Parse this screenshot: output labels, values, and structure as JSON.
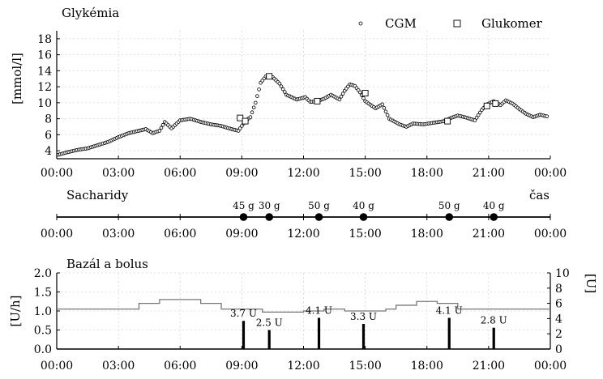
{
  "chart_data": [
    {
      "id": "glycemia",
      "type": "scatter",
      "title": "Glykémia",
      "ylabel": "[mmol/l]",
      "xlim": [
        "00:00",
        "24:00"
      ],
      "ylim": [
        3,
        19
      ],
      "grid": true,
      "legend_placement": "top-right",
      "x_ticks": [
        "00:00",
        "03:00",
        "06:00",
        "09:00",
        "12:00",
        "15:00",
        "18:00",
        "21:00",
        "00:00"
      ],
      "y_ticks": [
        4,
        6,
        8,
        10,
        12,
        14,
        16,
        18
      ],
      "series": [
        {
          "name": "CGM",
          "marker": "circle",
          "keypoints": [
            [
              "00:05",
              3.5
            ],
            [
              "00:30",
              3.8
            ],
            [
              "01:00",
              4.1
            ],
            [
              "01:30",
              4.3
            ],
            [
              "02:00",
              4.7
            ],
            [
              "02:30",
              5.1
            ],
            [
              "03:00",
              5.7
            ],
            [
              "03:30",
              6.2
            ],
            [
              "04:00",
              6.5
            ],
            [
              "04:20",
              6.7
            ],
            [
              "04:40",
              6.2
            ],
            [
              "05:00",
              6.5
            ],
            [
              "05:15",
              7.6
            ],
            [
              "05:35",
              6.8
            ],
            [
              "06:00",
              7.8
            ],
            [
              "06:30",
              8.0
            ],
            [
              "07:00",
              7.6
            ],
            [
              "07:30",
              7.3
            ],
            [
              "08:00",
              7.1
            ],
            [
              "08:30",
              6.7
            ],
            [
              "08:50",
              6.5
            ],
            [
              "09:10",
              7.7
            ],
            [
              "09:25",
              8.2
            ],
            [
              "09:40",
              10.0
            ],
            [
              "09:55",
              12.5
            ],
            [
              "10:10",
              13.3
            ],
            [
              "10:30",
              13.2
            ],
            [
              "10:50",
              12.4
            ],
            [
              "11:10",
              11.0
            ],
            [
              "11:40",
              10.4
            ],
            [
              "12:05",
              10.7
            ],
            [
              "12:20",
              10.1
            ],
            [
              "12:40",
              10.2
            ],
            [
              "13:00",
              10.5
            ],
            [
              "13:20",
              11.0
            ],
            [
              "13:45",
              10.4
            ],
            [
              "14:00",
              11.5
            ],
            [
              "14:15",
              12.3
            ],
            [
              "14:30",
              12.1
            ],
            [
              "14:45",
              11.3
            ],
            [
              "15:00",
              10.2
            ],
            [
              "15:30",
              9.3
            ],
            [
              "15:50",
              9.8
            ],
            [
              "16:10",
              8.0
            ],
            [
              "16:40",
              7.3
            ],
            [
              "17:00",
              7.0
            ],
            [
              "17:20",
              7.4
            ],
            [
              "17:50",
              7.3
            ],
            [
              "18:20",
              7.5
            ],
            [
              "18:50",
              7.7
            ],
            [
              "19:10",
              8.1
            ],
            [
              "19:30",
              8.4
            ],
            [
              "19:50",
              8.2
            ],
            [
              "20:20",
              7.8
            ],
            [
              "20:40",
              9.1
            ],
            [
              "20:55",
              9.8
            ],
            [
              "21:15",
              10.2
            ],
            [
              "21:35",
              9.7
            ],
            [
              "21:50",
              10.3
            ],
            [
              "22:10",
              9.9
            ],
            [
              "22:30",
              9.2
            ],
            [
              "22:50",
              8.6
            ],
            [
              "23:10",
              8.2
            ],
            [
              "23:30",
              8.5
            ],
            [
              "23:50",
              8.3
            ]
          ]
        },
        {
          "name": "Glukomer",
          "marker": "square",
          "points": [
            [
              "08:55",
              8.1
            ],
            [
              "09:10",
              7.7
            ],
            [
              "10:20",
              13.3
            ],
            [
              "12:40",
              10.2
            ],
            [
              "15:00",
              11.2
            ],
            [
              "19:00",
              7.7
            ],
            [
              "20:55",
              9.6
            ],
            [
              "21:20",
              9.9
            ]
          ]
        }
      ]
    },
    {
      "id": "carbs",
      "type": "scatter",
      "title": "Sacharidy",
      "xlabel": "čas",
      "xlim": [
        "00:00",
        "24:00"
      ],
      "x_ticks": [
        "00:00",
        "03:00",
        "06:00",
        "09:00",
        "12:00",
        "15:00",
        "18:00",
        "21:00",
        "00:00"
      ],
      "events": [
        {
          "time": "09:05",
          "label": "45 g"
        },
        {
          "time": "10:20",
          "label": "30 g"
        },
        {
          "time": "12:45",
          "label": "50 g"
        },
        {
          "time": "14:55",
          "label": "40 g"
        },
        {
          "time": "19:05",
          "label": "50 g"
        },
        {
          "time": "21:15",
          "label": "40 g"
        }
      ]
    },
    {
      "id": "insulin",
      "type": "bar",
      "title": "Bazál a bolus",
      "ylabel_left": "[U/h]",
      "ylabel_right": "[U]",
      "xlim": [
        "00:00",
        "24:00"
      ],
      "ylim_left": [
        0,
        2
      ],
      "ylim_right": [
        0,
        10
      ],
      "grid": true,
      "x_ticks": [
        "00:00",
        "03:00",
        "06:00",
        "09:00",
        "12:00",
        "15:00",
        "18:00",
        "21:00",
        "00:00"
      ],
      "y_ticks_left": [
        "0.0",
        "0.5",
        "1.0",
        "1.5",
        "2.0"
      ],
      "y_ticks_right": [
        "0",
        "2",
        "4",
        "6",
        "8",
        "10"
      ],
      "basal": [
        {
          "from": "00:00",
          "to": "04:00",
          "rate": 1.05
        },
        {
          "from": "04:00",
          "to": "05:00",
          "rate": 1.2
        },
        {
          "from": "05:00",
          "to": "07:00",
          "rate": 1.3
        },
        {
          "from": "07:00",
          "to": "08:00",
          "rate": 1.2
        },
        {
          "from": "08:00",
          "to": "10:00",
          "rate": 1.05
        },
        {
          "from": "10:00",
          "to": "12:00",
          "rate": 0.97
        },
        {
          "from": "12:00",
          "to": "13:00",
          "rate": 1.0
        },
        {
          "from": "13:00",
          "to": "14:00",
          "rate": 1.05
        },
        {
          "from": "14:00",
          "to": "16:00",
          "rate": 1.0
        },
        {
          "from": "16:00",
          "to": "16:30",
          "rate": 1.05
        },
        {
          "from": "16:30",
          "to": "17:30",
          "rate": 1.15
        },
        {
          "from": "17:30",
          "to": "18:30",
          "rate": 1.25
        },
        {
          "from": "18:30",
          "to": "19:30",
          "rate": 1.2
        },
        {
          "from": "19:30",
          "to": "24:00",
          "rate": 1.05
        }
      ],
      "boluses": [
        {
          "time": "09:05",
          "units": 3.7,
          "label": "3.7 U"
        },
        {
          "time": "10:20",
          "units": 2.5,
          "label": "2.5 U"
        },
        {
          "time": "12:45",
          "units": 4.1,
          "label": "4.1 U"
        },
        {
          "time": "14:55",
          "units": 3.3,
          "label": "3.3 U"
        },
        {
          "time": "19:05",
          "units": 4.1,
          "label": "4.1 U"
        },
        {
          "time": "21:15",
          "units": 2.8,
          "label": "2.8 U"
        }
      ]
    }
  ]
}
